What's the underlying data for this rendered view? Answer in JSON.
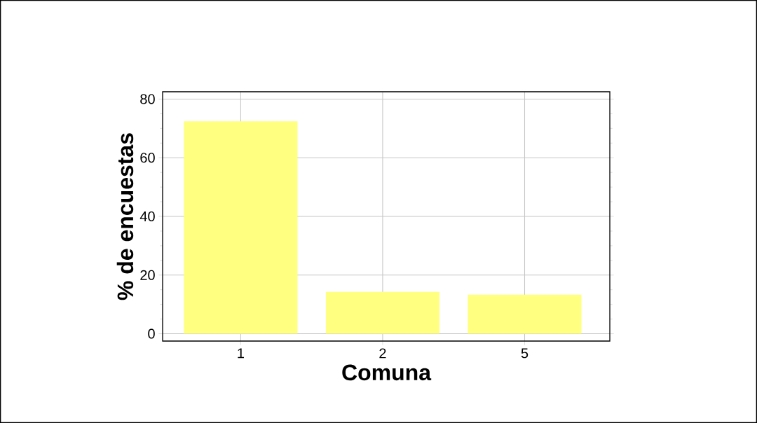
{
  "chart_data": {
    "type": "bar",
    "xlabel": "Comuna",
    "ylabel": "% de encuestas",
    "categories": [
      "1",
      "2",
      "5"
    ],
    "values": [
      72.4,
      14.3,
      13.3
    ],
    "color": "#ffff80",
    "ylim": [
      -2.5,
      82.5
    ],
    "yticks": [
      0,
      20,
      40,
      60,
      80
    ],
    "grid": true
  }
}
